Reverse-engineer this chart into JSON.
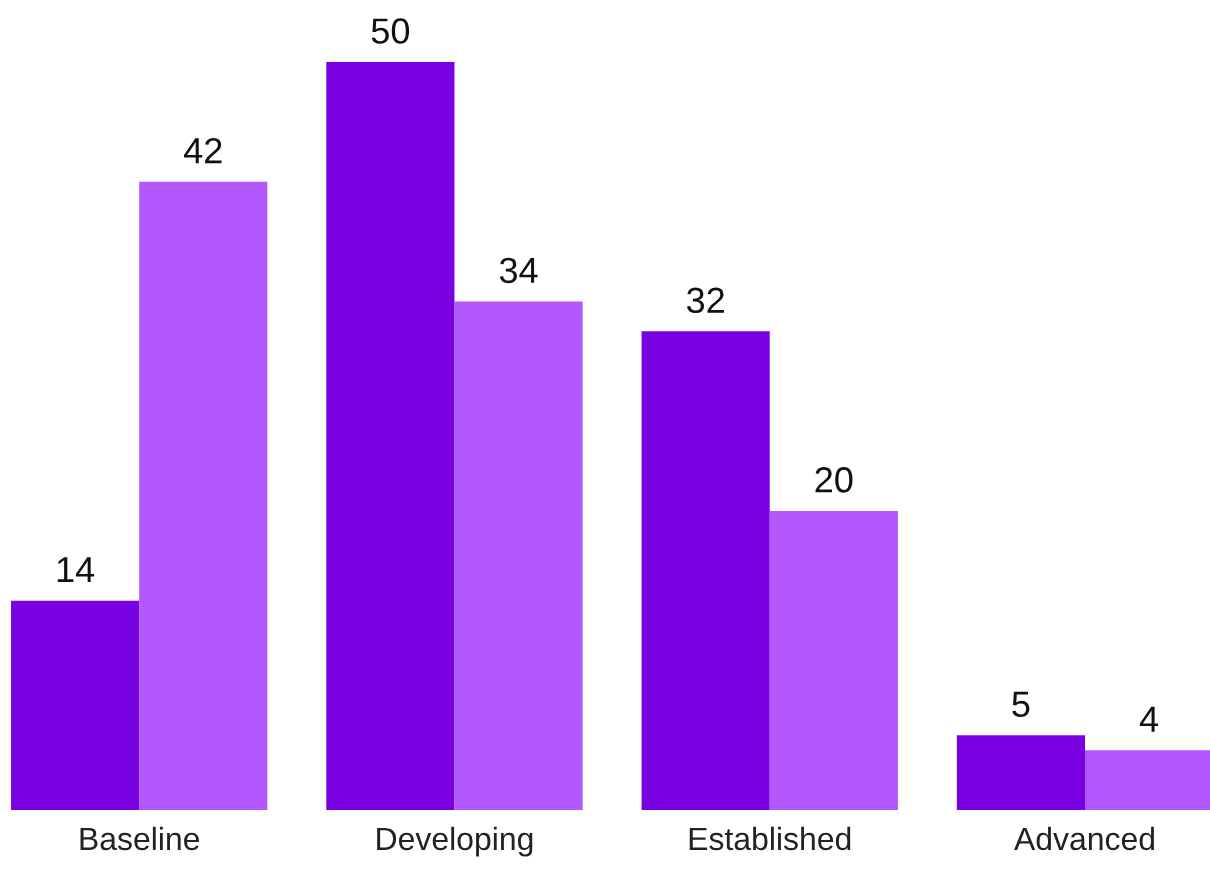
{
  "chart_data": {
    "type": "bar",
    "categories": [
      "Baseline",
      "Developing",
      "Established",
      "Advanced"
    ],
    "series": [
      {
        "color": "#7900e0",
        "values": [
          14,
          50,
          32,
          5
        ]
      },
      {
        "color": "#b257fc",
        "values": [
          42,
          34,
          20,
          4
        ]
      }
    ],
    "data_labels": true,
    "tick_labels": "x"
  }
}
